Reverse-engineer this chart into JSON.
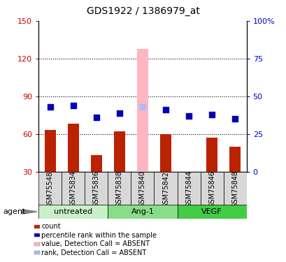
{
  "title": "GDS1922 / 1386979_at",
  "samples": [
    "GSM75548",
    "GSM75834",
    "GSM75836",
    "GSM75838",
    "GSM75840",
    "GSM75842",
    "GSM75844",
    "GSM75846",
    "GSM75848"
  ],
  "bar_values": [
    63,
    68,
    43,
    62,
    128,
    60,
    30,
    57,
    50
  ],
  "bar_absent": [
    false,
    false,
    false,
    false,
    true,
    false,
    false,
    false,
    false
  ],
  "dot_values": [
    43,
    44,
    36,
    39,
    43,
    41,
    37,
    38,
    35
  ],
  "dot_absent": [
    false,
    false,
    false,
    false,
    true,
    false,
    false,
    false,
    false
  ],
  "ylim_left": [
    30,
    150
  ],
  "ylim_right": [
    0,
    100
  ],
  "yticks_left": [
    30,
    60,
    90,
    120,
    150
  ],
  "yticks_right": [
    0,
    25,
    50,
    75,
    100
  ],
  "ytick_labels_left": [
    "30",
    "60",
    "90",
    "120",
    "150"
  ],
  "ytick_labels_right": [
    "0",
    "25",
    "50",
    "75",
    "100%"
  ],
  "grid_yticks": [
    60,
    90,
    120
  ],
  "bar_width": 0.5,
  "dot_size": 40,
  "bar_color": "#BB2200",
  "bar_absent_color": "#FFB6C1",
  "dot_color": "#0000BB",
  "dot_absent_color": "#AABCFF",
  "left_tick_color": "#CC0000",
  "right_tick_color": "#0000CC",
  "group_defs": [
    {
      "label": "untreated",
      "start": 0,
      "end": 3,
      "color": "#C8F0C8"
    },
    {
      "label": "Ang-1",
      "start": 3,
      "end": 6,
      "color": "#88DD88"
    },
    {
      "label": "VEGF",
      "start": 6,
      "end": 9,
      "color": "#44CC44"
    }
  ],
  "legend_labels": [
    "count",
    "percentile rank within the sample",
    "value, Detection Call = ABSENT",
    "rank, Detection Call = ABSENT"
  ],
  "legend_colors": [
    "#BB2200",
    "#0000BB",
    "#FFB6C1",
    "#AABCFF"
  ],
  "agent_label": "agent"
}
